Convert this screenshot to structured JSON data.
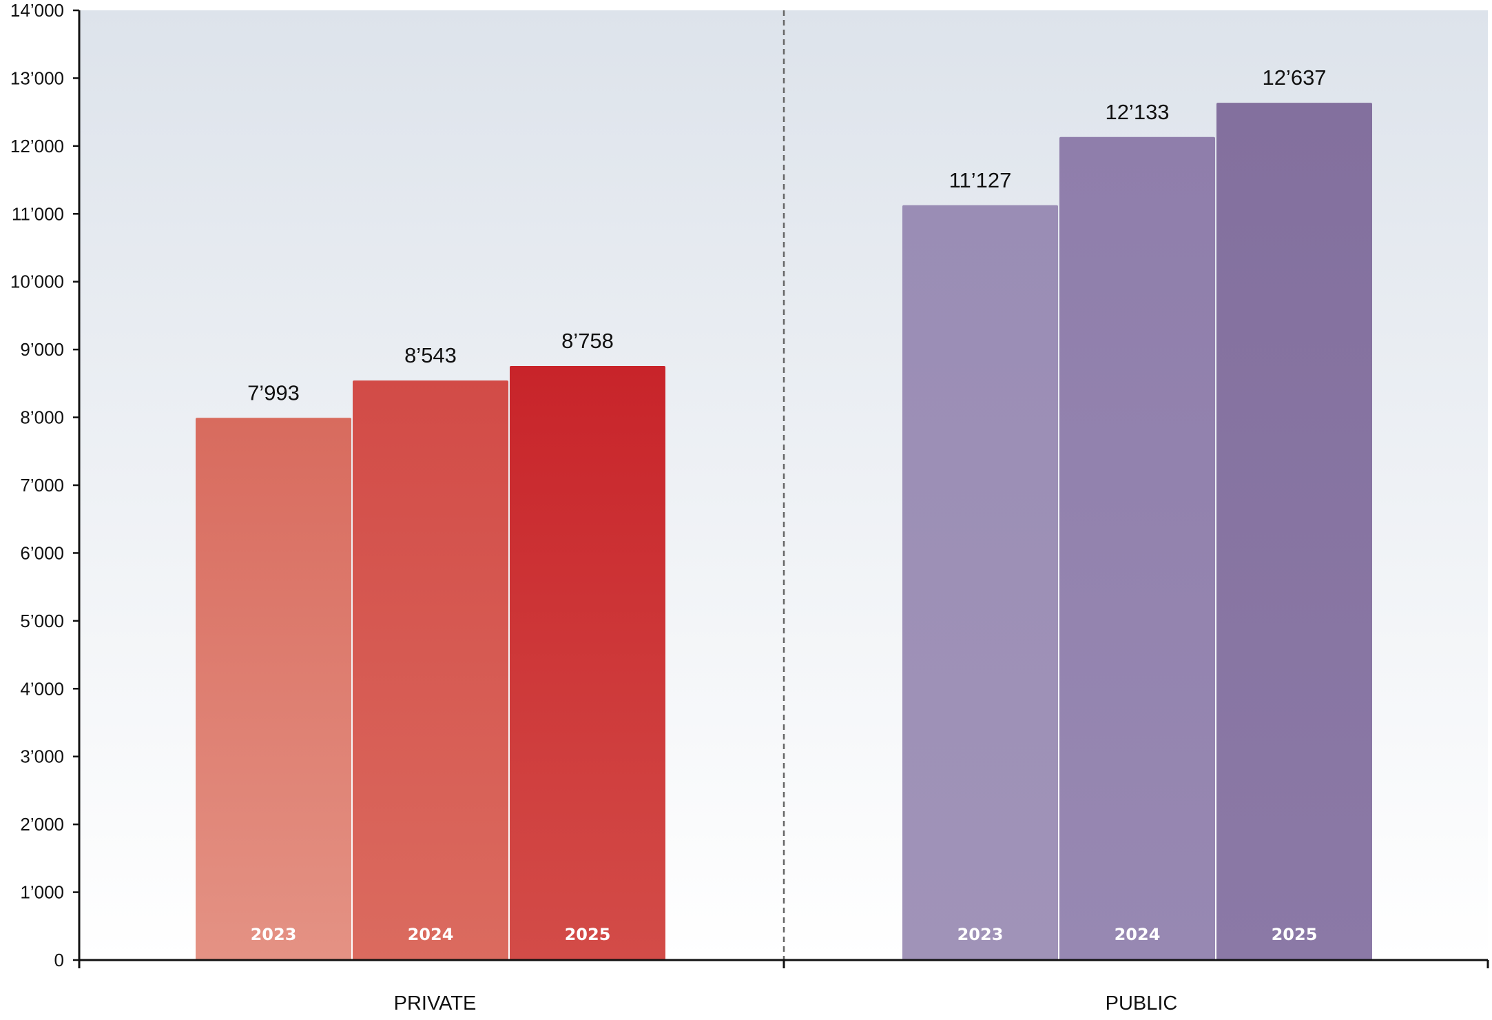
{
  "chart_data": {
    "type": "bar",
    "title": "",
    "xlabel": "",
    "ylabel": "",
    "ylim": [
      0,
      14000
    ],
    "y_ticks": [
      0,
      1000,
      2000,
      3000,
      4000,
      5000,
      6000,
      7000,
      8000,
      9000,
      10000,
      11000,
      12000,
      13000,
      14000
    ],
    "y_tick_labels": [
      "0",
      "1’000",
      "2’000",
      "3’000",
      "4’000",
      "5’000",
      "6’000",
      "7’000",
      "8’000",
      "9’000",
      "10’000",
      "11’000",
      "12’000",
      "13’000",
      "14’000"
    ],
    "grid": false,
    "legend": "none",
    "group_divider": "dashed",
    "groups": [
      {
        "label": "PRIVATE",
        "bars": [
          {
            "category": "2023",
            "value": 7993,
            "value_label": "7’993",
            "color_top": "#d86b5e",
            "color_bottom": "#e49284"
          },
          {
            "category": "2024",
            "value": 8543,
            "value_label": "8’543",
            "color_top": "#d24b47",
            "color_bottom": "#db6b5f"
          },
          {
            "category": "2025",
            "value": 8758,
            "value_label": "8’758",
            "color_top": "#c8242a",
            "color_bottom": "#d34c48"
          }
        ]
      },
      {
        "label": "PUBLIC",
        "bars": [
          {
            "category": "2023",
            "value": 11127,
            "value_label": "11’127",
            "color_top": "#9a8db5",
            "color_bottom": "#a093b8"
          },
          {
            "category": "2024",
            "value": 12133,
            "value_label": "12’133",
            "color_top": "#8f7eab",
            "color_bottom": "#9788b2"
          },
          {
            "category": "2025",
            "value": 12637,
            "value_label": "12’637",
            "color_top": "#83709e",
            "color_bottom": "#8b79a6"
          }
        ]
      }
    ],
    "colors": {
      "background_top": "#dde3eb",
      "background_bottom": "#ffffff",
      "axis": "#111111",
      "divider": "#666666",
      "private_series": "#c8242a",
      "public_series": "#83709e"
    }
  }
}
